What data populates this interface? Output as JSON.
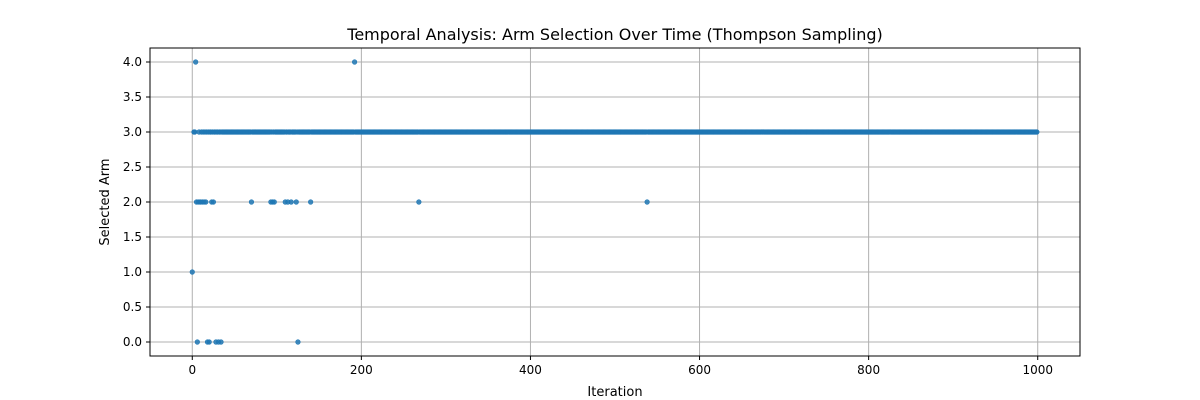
{
  "chart_data": {
    "type": "scatter",
    "title": "Temporal Analysis: Arm Selection Over Time (Thompson Sampling)",
    "xlabel": "Iteration",
    "ylabel": "Selected Arm",
    "xlim": [
      -50,
      1050
    ],
    "ylim": [
      -0.2,
      4.2
    ],
    "xticks": [
      0,
      200,
      400,
      600,
      800,
      1000
    ],
    "yticks": [
      0.0,
      0.5,
      1.0,
      1.5,
      2.0,
      2.5,
      3.0,
      3.5,
      4.0
    ],
    "xtick_labels": [
      "0",
      "200",
      "400",
      "600",
      "800",
      "1000"
    ],
    "ytick_labels": [
      "0.0",
      "0.5",
      "1.0",
      "1.5",
      "2.0",
      "2.5",
      "3.0",
      "3.5",
      "4.0"
    ],
    "grid": true,
    "color": "#1f77b4",
    "series": [
      {
        "points_summary": "arm 3 selected at nearly every iteration from ~2 to 999",
        "arm3_range": [
          2,
          999
        ],
        "arm3_exceptions_note": "iterations listed below for other arms are not arm 3",
        "points": [
          {
            "x": 0,
            "y": 1
          },
          {
            "x": 4,
            "y": 4
          },
          {
            "x": 192,
            "y": 4
          },
          {
            "x": 5,
            "y": 2
          },
          {
            "x": 7,
            "y": 2
          },
          {
            "x": 9,
            "y": 2
          },
          {
            "x": 10,
            "y": 2
          },
          {
            "x": 12,
            "y": 2
          },
          {
            "x": 14,
            "y": 2
          },
          {
            "x": 16,
            "y": 2
          },
          {
            "x": 23,
            "y": 2
          },
          {
            "x": 25,
            "y": 2
          },
          {
            "x": 70,
            "y": 2
          },
          {
            "x": 93,
            "y": 2
          },
          {
            "x": 95,
            "y": 2
          },
          {
            "x": 97,
            "y": 2
          },
          {
            "x": 110,
            "y": 2
          },
          {
            "x": 113,
            "y": 2
          },
          {
            "x": 117,
            "y": 2
          },
          {
            "x": 123,
            "y": 2
          },
          {
            "x": 140,
            "y": 2
          },
          {
            "x": 268,
            "y": 2
          },
          {
            "x": 538,
            "y": 2
          },
          {
            "x": 6,
            "y": 0
          },
          {
            "x": 18,
            "y": 0
          },
          {
            "x": 20,
            "y": 0
          },
          {
            "x": 28,
            "y": 0
          },
          {
            "x": 31,
            "y": 0
          },
          {
            "x": 34,
            "y": 0
          },
          {
            "x": 125,
            "y": 0
          }
        ]
      }
    ]
  }
}
